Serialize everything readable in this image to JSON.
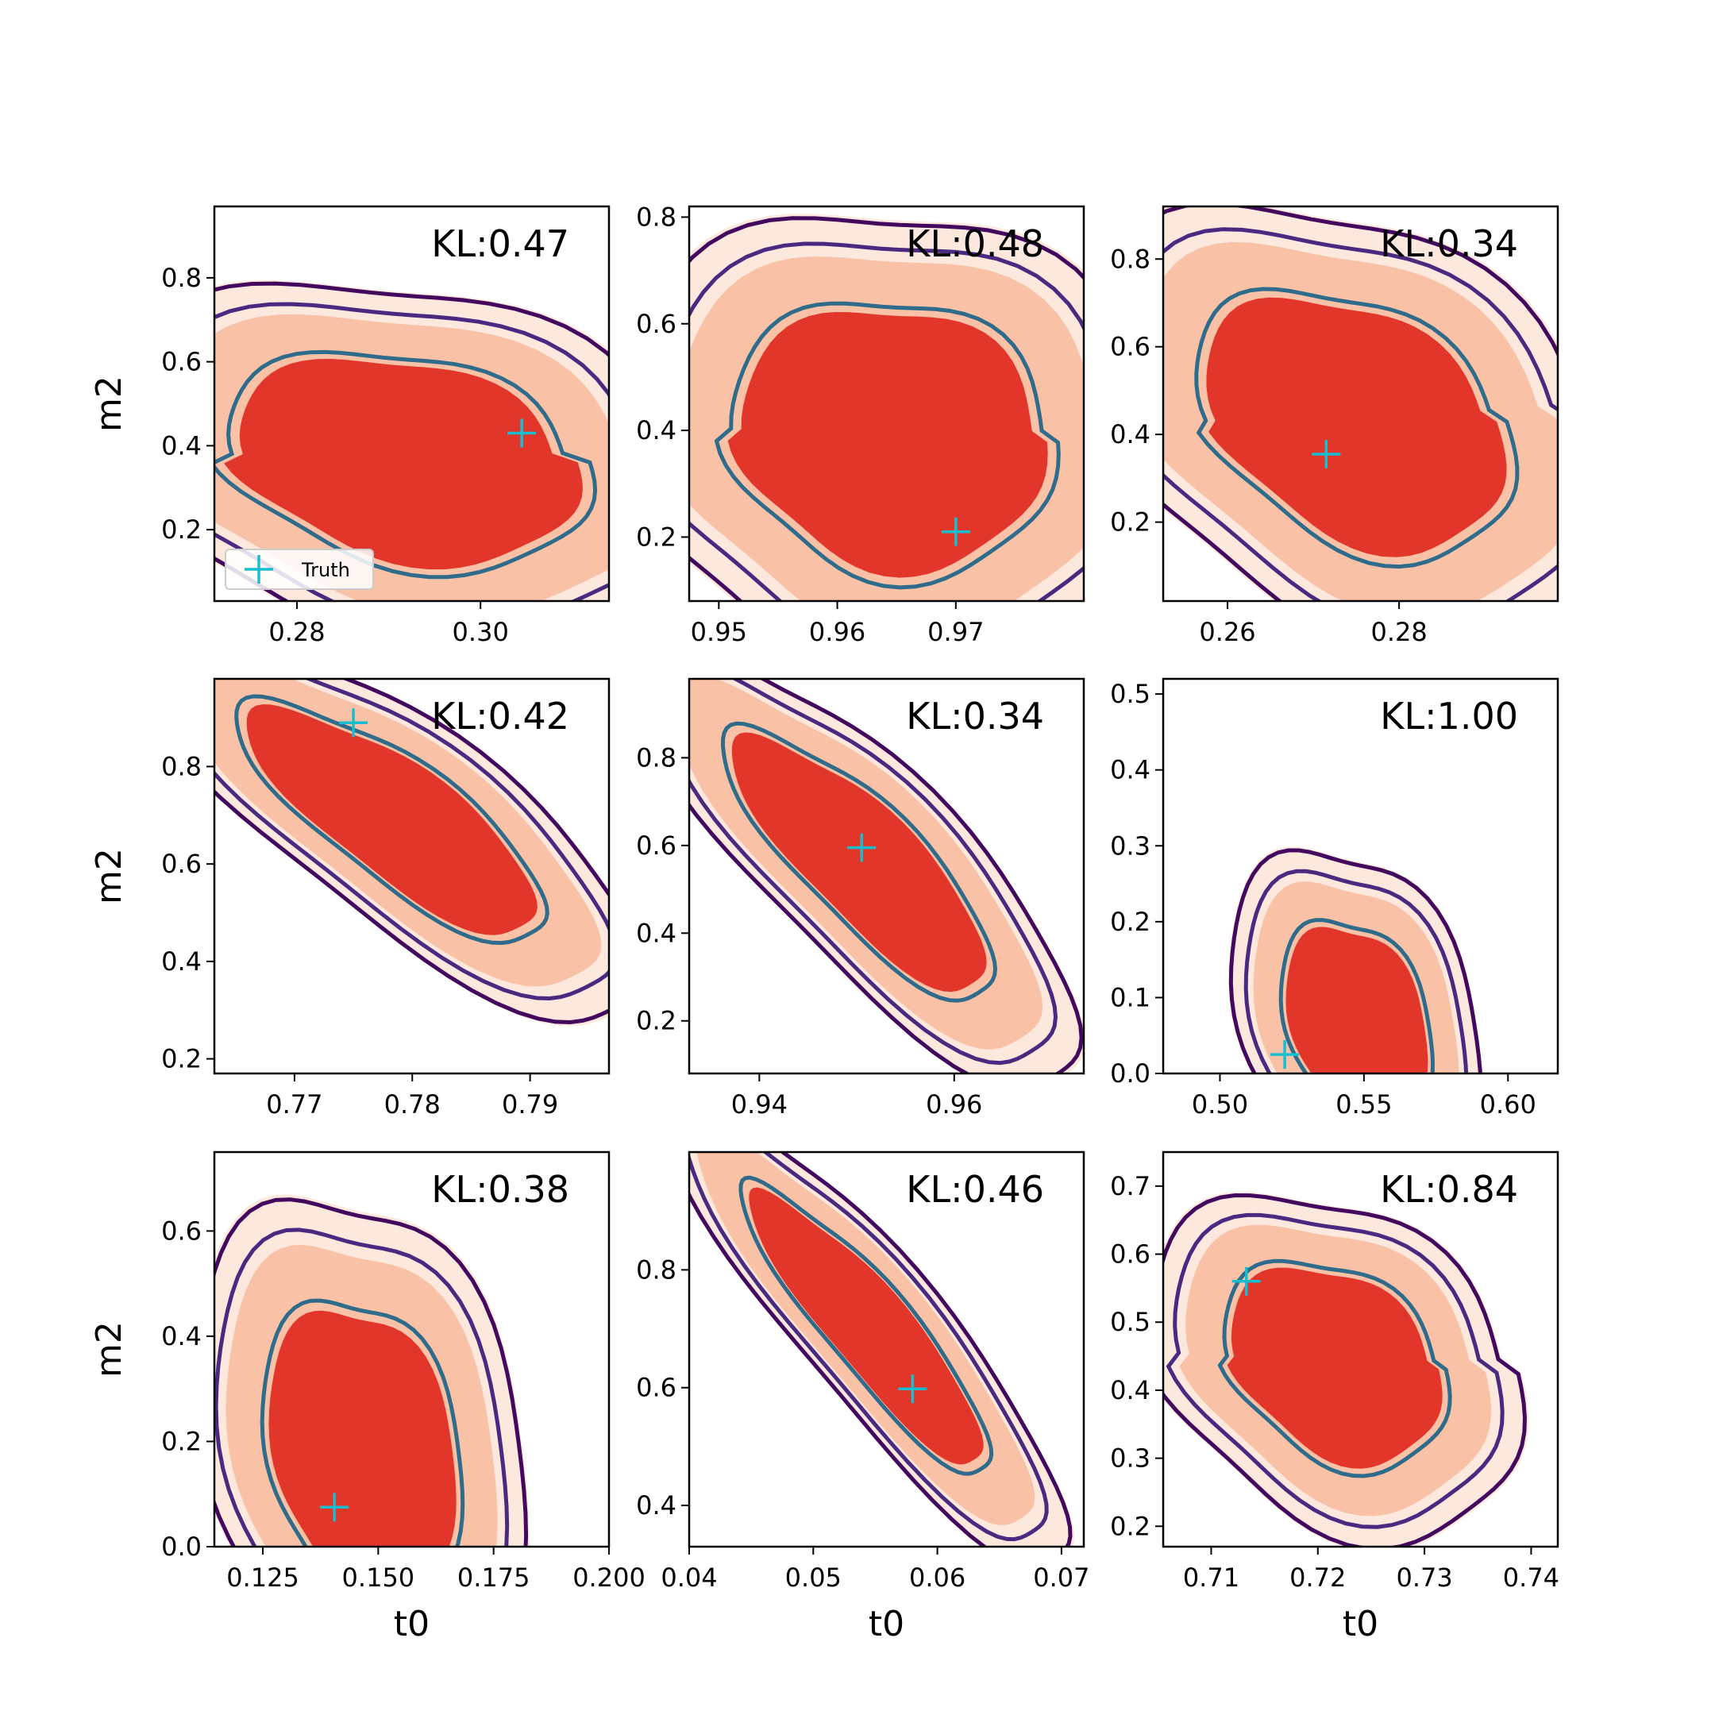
{
  "colors": {
    "fill_outer": "#fde8dd",
    "fill_mid": "#f9c2a7",
    "fill_inner": "#e3362a",
    "line_outer": "#43095f",
    "line_mid": "#4a2a80",
    "line_inner": "#2f6b8a",
    "truth": "#17becf"
  },
  "legend": {
    "truth_label": "Truth"
  },
  "chart_data": [
    {
      "type": "contour",
      "kl_label": "KL:0.47",
      "xlabel": "",
      "ylabel": "m2",
      "xlim": [
        0.271,
        0.314
      ],
      "ylim": [
        0.03,
        0.97
      ],
      "xticks": [
        0.28,
        0.3
      ],
      "xtick_labels": [
        "0.28",
        "0.30"
      ],
      "yticks": [
        0.2,
        0.4,
        0.6,
        0.8
      ],
      "ytick_labels": [
        "0.2",
        "0.4",
        "0.6",
        "0.8"
      ],
      "center": [
        0.2915,
        0.37
      ],
      "spread": [
        0.012,
        0.17
      ],
      "corr": -0.25,
      "skew": 0.15,
      "truth": [
        0.3045,
        0.43
      ],
      "legend": true
    },
    {
      "type": "contour",
      "kl_label": "KL:0.48",
      "xlabel": "",
      "ylabel": "",
      "xlim": [
        0.9475,
        0.9808
      ],
      "ylim": [
        0.08,
        0.82
      ],
      "xticks": [
        0.95,
        0.96,
        0.97
      ],
      "xtick_labels": [
        "0.95",
        "0.96",
        "0.97"
      ],
      "yticks": [
        0.2,
        0.4,
        0.6,
        0.8
      ],
      "ytick_labels": [
        "0.2",
        "0.4",
        "0.6",
        "0.8"
      ],
      "center": [
        0.9645,
        0.39
      ],
      "spread": [
        0.0085,
        0.17
      ],
      "corr": -0.1,
      "skew": 0.1,
      "truth": [
        0.97,
        0.21
      ],
      "legend": false
    },
    {
      "type": "contour",
      "kl_label": "KL:0.34",
      "xlabel": "",
      "ylabel": "",
      "xlim": [
        0.2525,
        0.2985
      ],
      "ylim": [
        0.02,
        0.92
      ],
      "xticks": [
        0.26,
        0.28
      ],
      "xtick_labels": [
        "0.26",
        "0.28"
      ],
      "yticks": [
        0.2,
        0.4,
        0.6,
        0.8
      ],
      "ytick_labels": [
        "0.2",
        "0.4",
        "0.6",
        "0.8"
      ],
      "center": [
        0.2745,
        0.43
      ],
      "spread": [
        0.0115,
        0.2
      ],
      "corr": -0.35,
      "skew": 0.1,
      "truth": [
        0.2715,
        0.355
      ],
      "legend": false
    },
    {
      "type": "contour",
      "kl_label": "KL:0.42",
      "xlabel": "",
      "ylabel": "m2",
      "xlim": [
        0.7632,
        0.7967
      ],
      "ylim": [
        0.17,
        0.98
      ],
      "xticks": [
        0.77,
        0.78,
        0.79
      ],
      "xtick_labels": [
        "0.77",
        "0.78",
        "0.79"
      ],
      "yticks": [
        0.2,
        0.4,
        0.6,
        0.8
      ],
      "ytick_labels": [
        "0.2",
        "0.4",
        "0.6",
        "0.8"
      ],
      "center": [
        0.7785,
        0.69
      ],
      "spread": [
        0.0085,
        0.16
      ],
      "corr": -0.8,
      "skew": 0.0,
      "truth": [
        0.775,
        0.89
      ],
      "legend": false
    },
    {
      "type": "contour",
      "kl_label": "KL:0.34",
      "xlabel": "",
      "ylabel": "",
      "xlim": [
        0.9328,
        0.9733
      ],
      "ylim": [
        0.08,
        0.98
      ],
      "xticks": [
        0.94,
        0.96
      ],
      "xtick_labels": [
        "0.94",
        "0.96"
      ],
      "yticks": [
        0.2,
        0.4,
        0.6,
        0.8
      ],
      "ytick_labels": [
        "0.2",
        "0.4",
        "0.6",
        "0.8"
      ],
      "center": [
        0.9505,
        0.56
      ],
      "spread": [
        0.009,
        0.2
      ],
      "corr": -0.82,
      "skew": 0.0,
      "truth": [
        0.9505,
        0.595
      ],
      "legend": false
    },
    {
      "type": "contour",
      "kl_label": "KL:1.00",
      "xlabel": "",
      "ylabel": "",
      "xlim": [
        0.4803,
        0.6173
      ],
      "ylim": [
        0.0,
        0.52
      ],
      "xticks": [
        0.5,
        0.55,
        0.6
      ],
      "xtick_labels": [
        "0.50",
        "0.55",
        "0.60"
      ],
      "yticks": [
        0.0,
        0.1,
        0.2,
        0.3,
        0.4,
        0.5
      ],
      "ytick_labels": [
        "0.0",
        "0.1",
        "0.2",
        "0.3",
        "0.4",
        "0.5"
      ],
      "center": [
        0.548,
        0.06
      ],
      "spread": [
        0.017,
        0.095
      ],
      "corr": -0.3,
      "skew": 0.0,
      "truth": [
        0.5225,
        0.025
      ],
      "legend": false
    },
    {
      "type": "contour",
      "kl_label": "KL:0.38",
      "xlabel": "t0",
      "ylabel": "m2",
      "xlim": [
        0.1145,
        0.2
      ],
      "ylim": [
        0.0,
        0.75
      ],
      "xticks": [
        0.125,
        0.15,
        0.175,
        0.2
      ],
      "xtick_labels": [
        "0.125",
        "0.150",
        "0.175",
        "0.200"
      ],
      "yticks": [
        0.0,
        0.2,
        0.4,
        0.6
      ],
      "ytick_labels": [
        "0.0",
        "0.2",
        "0.4",
        "0.6"
      ],
      "center": [
        0.147,
        0.17
      ],
      "spread": [
        0.014,
        0.2
      ],
      "corr": -0.25,
      "skew": 0.0,
      "truth": [
        0.1405,
        0.075
      ],
      "legend": false
    },
    {
      "type": "contour",
      "kl_label": "KL:0.46",
      "xlabel": "t0",
      "ylabel": "",
      "xlim": [
        0.04,
        0.0718
      ],
      "ylim": [
        0.33,
        1.0
      ],
      "xticks": [
        0.04,
        0.05,
        0.06,
        0.07
      ],
      "xtick_labels": [
        "0.04",
        "0.05",
        "0.06",
        "0.07"
      ],
      "yticks": [
        0.4,
        0.6,
        0.8
      ],
      "ytick_labels": [
        "0.4",
        "0.6",
        "0.8"
      ],
      "center": [
        0.0545,
        0.7
      ],
      "spread": [
        0.0065,
        0.16
      ],
      "corr": -0.9,
      "skew": 0.0,
      "truth": [
        0.058,
        0.598
      ],
      "legend": false
    },
    {
      "type": "contour",
      "kl_label": "KL:0.84",
      "xlabel": "t0",
      "ylabel": "",
      "xlim": [
        0.7055,
        0.7425
      ],
      "ylim": [
        0.17,
        0.75
      ],
      "xticks": [
        0.71,
        0.72,
        0.73,
        0.74
      ],
      "xtick_labels": [
        "0.71",
        "0.72",
        "0.73",
        "0.74"
      ],
      "yticks": [
        0.2,
        0.3,
        0.4,
        0.5,
        0.6,
        0.7
      ],
      "ytick_labels": [
        "0.2",
        "0.3",
        "0.4",
        "0.5",
        "0.6",
        "0.7"
      ],
      "center": [
        0.7215,
        0.44
      ],
      "spread": [
        0.0065,
        0.1
      ],
      "corr": -0.3,
      "skew": 0.1,
      "truth": [
        0.7133,
        0.56
      ],
      "legend": false
    }
  ]
}
